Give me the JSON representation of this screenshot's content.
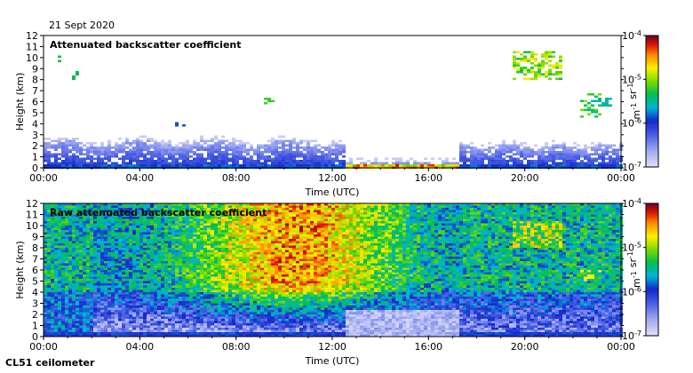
{
  "date_label": "21 Sept 2020",
  "instrument_label": "CL51 ceilometer",
  "chart_data": [
    {
      "type": "heatmap",
      "title": "Attenuated backscatter coefficient",
      "xlabel": "Time (UTC)",
      "ylabel": "Height (km)",
      "x_ticks": [
        "00:00",
        "04:00",
        "08:00",
        "12:00",
        "16:00",
        "20:00",
        "00:00"
      ],
      "x_range_hours": [
        0,
        24
      ],
      "y_ticks": [
        0,
        1,
        2,
        3,
        4,
        5,
        6,
        7,
        8,
        9,
        10,
        11,
        12
      ],
      "ylim": [
        0,
        12
      ],
      "colorbar": {
        "label": "m-1 sr-1",
        "min_exponent": -7,
        "max_exponent": -4,
        "tick_labels": [
          "10^-7",
          "10^-6",
          "10^-5",
          "10^-4"
        ]
      },
      "features": [
        {
          "kind": "boundary_layer",
          "height_km_top": 2.3,
          "from_hour": 0,
          "to_hour": 12.5
        },
        {
          "kind": "clear_gap",
          "from_hour": 12.5,
          "to_hour": 17.3
        },
        {
          "kind": "boundary_layer",
          "height_km_top": 2.0,
          "from_hour": 17.3,
          "to_hour": 24
        },
        {
          "kind": "cloud",
          "from_hour": 19.5,
          "to_hour": 21.5,
          "height_km": [
            8.0,
            10.5
          ]
        },
        {
          "kind": "cloud",
          "from_hour": 22.3,
          "to_hour": 23.2,
          "height_km": [
            4.5,
            6.8
          ]
        }
      ]
    },
    {
      "type": "heatmap",
      "title": "Raw attenuated backscatter coefficient",
      "xlabel": "Time (UTC)",
      "ylabel": "Height (km)",
      "x_ticks": [
        "00:00",
        "04:00",
        "08:00",
        "12:00",
        "16:00",
        "20:00",
        "00:00"
      ],
      "x_range_hours": [
        0,
        24
      ],
      "y_ticks": [
        0,
        1,
        2,
        3,
        4,
        5,
        6,
        7,
        8,
        9,
        10,
        11,
        12
      ],
      "ylim": [
        0,
        12
      ],
      "colorbar": {
        "label": "m-1 sr-1",
        "min_exponent": -7,
        "max_exponent": -4,
        "tick_labels": [
          "10^-7",
          "10^-6",
          "10^-5",
          "10^-4"
        ]
      },
      "features": [
        {
          "kind": "noise_peak",
          "center_hour": 10.5,
          "description": "daytime solar noise, strongest 08:00-12:00"
        },
        {
          "kind": "cloud",
          "from_hour": 19.5,
          "to_hour": 21.5,
          "height_km": [
            8.0,
            10.5
          ]
        }
      ]
    }
  ]
}
